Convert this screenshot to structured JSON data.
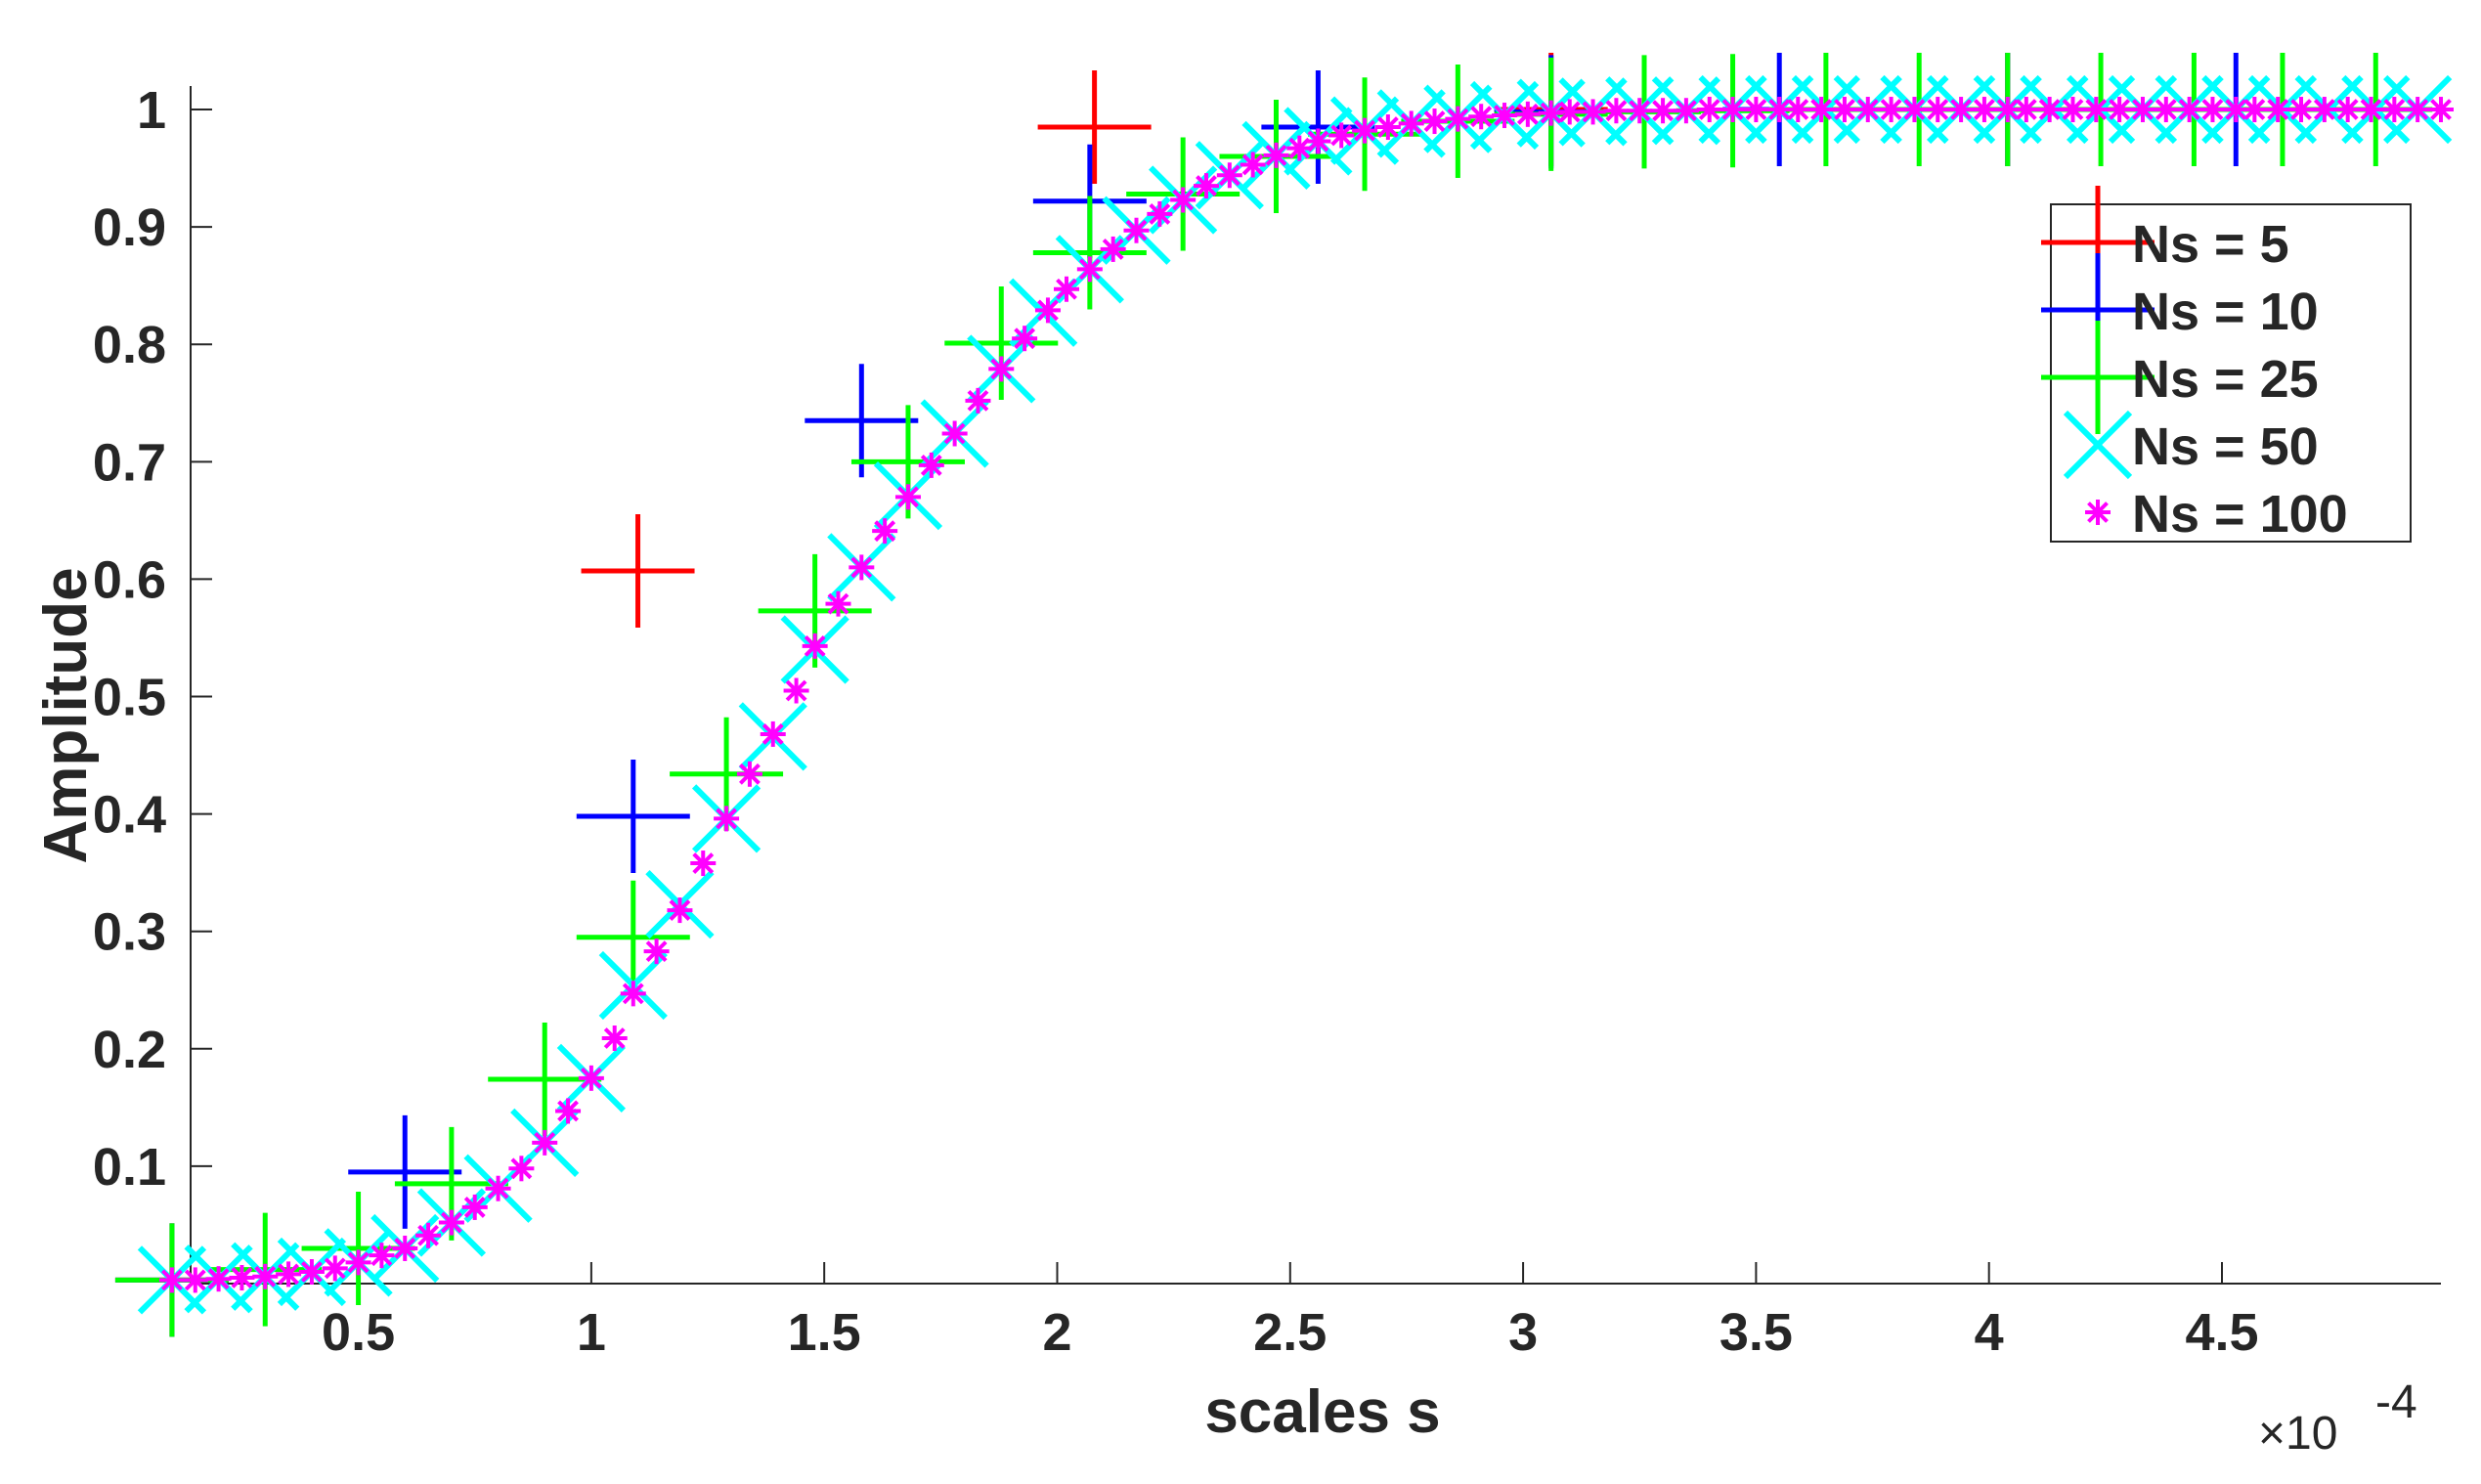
{
  "chart_data": {
    "type": "scatter",
    "title": "",
    "xlabel": "scales s",
    "ylabel": "Amplitude",
    "x_exponent": {
      "base": "×10",
      "power": "-4"
    },
    "xlim": [
      0.14,
      4.97
    ],
    "ylim": [
      0.0,
      1.02
    ],
    "x_ticks": [
      0.5,
      1,
      1.5,
      2,
      2.5,
      3,
      3.5,
      4,
      4.5
    ],
    "x_tick_labels": [
      "0.5",
      "1",
      "1.5",
      "2",
      "2.5",
      "3",
      "3.5",
      "4",
      "4.5"
    ],
    "y_ticks": [
      0.1,
      0.2,
      0.3,
      0.4,
      0.5,
      0.6,
      0.7,
      0.8,
      0.9,
      1
    ],
    "y_tick_labels": [
      "0.1",
      "0.2",
      "0.3",
      "0.4",
      "0.5",
      "0.6",
      "0.7",
      "0.8",
      "0.9",
      "1"
    ],
    "legend_position": "top-right",
    "series": [
      {
        "name": "Ns = 5",
        "color": "#ff0000",
        "marker": "plus",
        "x": [
          0.1,
          1.1,
          2.08,
          3.06,
          4.04
        ],
        "y": [
          0.003,
          0.607,
          0.985,
          1.0,
          1.0
        ]
      },
      {
        "name": "Ns = 10",
        "color": "#0000ff",
        "marker": "plus",
        "x": [
          0.1,
          0.6,
          1.09,
          1.58,
          2.07,
          2.56,
          3.06,
          3.55,
          4.04,
          4.53
        ],
        "y": [
          0.003,
          0.095,
          0.398,
          0.735,
          0.922,
          0.985,
          0.998,
          1.0,
          1.0,
          1.0
        ]
      },
      {
        "name": "Ns = 25",
        "color": "#00ff00",
        "marker": "plus",
        "x": [
          0.1,
          0.3,
          0.5,
          0.7,
          0.9,
          1.09,
          1.29,
          1.48,
          1.68,
          1.88,
          2.07,
          2.27,
          2.47,
          2.66,
          2.86,
          3.06,
          3.26,
          3.45,
          3.65,
          3.85,
          4.04,
          4.24,
          4.44,
          4.63,
          4.83
        ],
        "y": [
          0.003,
          0.012,
          0.03,
          0.085,
          0.174,
          0.295,
          0.434,
          0.573,
          0.7,
          0.801,
          0.878,
          0.928,
          0.96,
          0.979,
          0.99,
          0.996,
          0.998,
          0.999,
          1.0,
          1.0,
          1.0,
          1.0,
          1.0,
          1.0,
          1.0
        ]
      },
      {
        "name": "Ns = 50",
        "color": "#00ffff",
        "marker": "cross",
        "x": [
          0.1,
          0.2,
          0.3,
          0.4,
          0.5,
          0.6,
          0.7,
          0.8,
          0.9,
          1.0,
          1.09,
          1.19,
          1.29,
          1.39,
          1.48,
          1.58,
          1.68,
          1.78,
          1.88,
          1.97,
          2.07,
          2.17,
          2.27,
          2.37,
          2.47,
          2.56,
          2.66,
          2.76,
          2.86,
          2.96,
          3.06,
          3.15,
          3.25,
          3.35,
          3.45,
          3.55,
          3.65,
          3.74,
          3.84,
          3.94,
          4.04,
          4.14,
          4.24,
          4.33,
          4.43,
          4.53,
          4.63,
          4.73,
          4.83,
          4.92
        ],
        "y": [
          0.003,
          0.004,
          0.006,
          0.01,
          0.018,
          0.03,
          0.052,
          0.081,
          0.12,
          0.175,
          0.254,
          0.323,
          0.396,
          0.466,
          0.54,
          0.61,
          0.671,
          0.724,
          0.779,
          0.827,
          0.864,
          0.897,
          0.923,
          0.944,
          0.961,
          0.973,
          0.982,
          0.988,
          0.992,
          0.995,
          0.997,
          0.998,
          0.999,
          0.999,
          1.0,
          1.0,
          1.0,
          1.0,
          1.0,
          1.0,
          1.0,
          1.0,
          1.0,
          1.0,
          1.0,
          1.0,
          1.0,
          1.0,
          1.0,
          1.0
        ]
      },
      {
        "name": "Ns = 100",
        "color": "#ff00ff",
        "marker": "asterisk",
        "x": [
          0.1,
          0.15,
          0.2,
          0.25,
          0.3,
          0.35,
          0.4,
          0.45,
          0.5,
          0.55,
          0.6,
          0.65,
          0.7,
          0.75,
          0.8,
          0.85,
          0.9,
          0.95,
          1.0,
          1.05,
          1.09,
          1.14,
          1.19,
          1.24,
          1.29,
          1.34,
          1.39,
          1.44,
          1.48,
          1.53,
          1.58,
          1.63,
          1.68,
          1.73,
          1.78,
          1.83,
          1.88,
          1.93,
          1.98,
          2.02,
          2.07,
          2.12,
          2.17,
          2.22,
          2.27,
          2.32,
          2.37,
          2.42,
          2.47,
          2.52,
          2.56,
          2.61,
          2.66,
          2.71,
          2.76,
          2.81,
          2.86,
          2.91,
          2.96,
          3.01,
          3.06,
          3.1,
          3.15,
          3.2,
          3.25,
          3.3,
          3.35,
          3.4,
          3.45,
          3.5,
          3.55,
          3.59,
          3.64,
          3.69,
          3.74,
          3.79,
          3.84,
          3.89,
          3.94,
          3.99,
          4.04,
          4.08,
          4.13,
          4.18,
          4.23,
          4.28,
          4.33,
          4.38,
          4.43,
          4.48,
          4.53,
          4.57,
          4.62,
          4.67,
          4.72,
          4.77,
          4.82,
          4.87,
          4.92,
          4.97
        ],
        "y": [
          0.003,
          0.003,
          0.004,
          0.005,
          0.006,
          0.008,
          0.01,
          0.013,
          0.018,
          0.024,
          0.03,
          0.041,
          0.052,
          0.065,
          0.081,
          0.098,
          0.12,
          0.147,
          0.175,
          0.209,
          0.247,
          0.283,
          0.318,
          0.358,
          0.396,
          0.434,
          0.468,
          0.505,
          0.543,
          0.579,
          0.61,
          0.641,
          0.67,
          0.697,
          0.724,
          0.752,
          0.779,
          0.805,
          0.829,
          0.847,
          0.864,
          0.881,
          0.897,
          0.911,
          0.923,
          0.935,
          0.944,
          0.953,
          0.961,
          0.967,
          0.973,
          0.978,
          0.982,
          0.985,
          0.988,
          0.99,
          0.992,
          0.994,
          0.995,
          0.996,
          0.997,
          0.998,
          0.998,
          0.999,
          0.999,
          0.999,
          0.999,
          1.0,
          1.0,
          1.0,
          1.0,
          1.0,
          1.0,
          1.0,
          1.0,
          1.0,
          1.0,
          1.0,
          1.0,
          1.0,
          1.0,
          1.0,
          1.0,
          1.0,
          1.0,
          1.0,
          1.0,
          1.0,
          1.0,
          1.0,
          1.0,
          1.0,
          1.0,
          1.0,
          1.0,
          1.0,
          1.0,
          1.0,
          1.0,
          1.0
        ]
      }
    ]
  }
}
